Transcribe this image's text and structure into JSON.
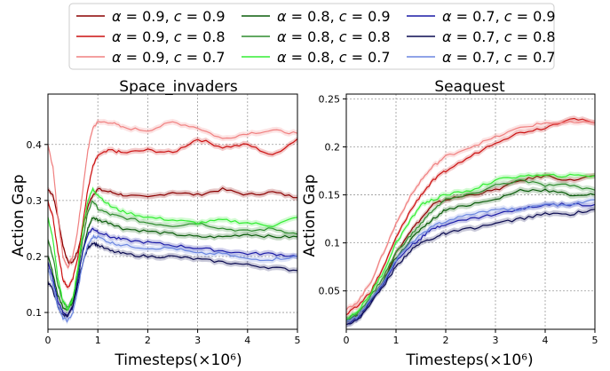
{
  "legend": {
    "entries": [
      {
        "alpha": "0.9",
        "c": "0.9",
        "color": "#8b0000"
      },
      {
        "alpha": "0.8",
        "c": "0.9",
        "color": "#0b5d0b"
      },
      {
        "alpha": "0.7",
        "c": "0.9",
        "color": "#1a1aa6"
      },
      {
        "alpha": "0.9",
        "c": "0.8",
        "color": "#cc1111"
      },
      {
        "alpha": "0.8",
        "c": "0.8",
        "color": "#2e8b2e"
      },
      {
        "alpha": "0.7",
        "c": "0.8",
        "color": "#0a0a50"
      },
      {
        "alpha": "0.9",
        "c": "0.7",
        "color": "#f08080"
      },
      {
        "alpha": "0.8",
        "c": "0.7",
        "color": "#33ee33"
      },
      {
        "alpha": "0.7",
        "c": "0.7",
        "color": "#6b86e0"
      }
    ]
  },
  "chart_data": [
    {
      "type": "line",
      "title": "Space_invaders",
      "xlabel": "Timesteps(×10⁶)",
      "ylabel": "Action Gap",
      "xlim": [
        0,
        5
      ],
      "ylim": [
        0.07,
        0.49
      ],
      "xticks": [
        0,
        1,
        2,
        3,
        4,
        5
      ],
      "yticks": [
        0.1,
        0.2,
        0.3,
        0.4
      ],
      "grid": true,
      "x": [
        0,
        0.1,
        0.2,
        0.3,
        0.4,
        0.5,
        0.6,
        0.7,
        0.8,
        0.9,
        1.0,
        1.25,
        1.5,
        2.0,
        2.5,
        3.0,
        3.5,
        4.0,
        4.5,
        5.0
      ],
      "series": [
        {
          "legend_index": 0,
          "values": [
            0.32,
            0.31,
            0.27,
            0.22,
            0.19,
            0.19,
            0.21,
            0.25,
            0.29,
            0.31,
            0.32,
            0.315,
            0.31,
            0.305,
            0.315,
            0.31,
            0.32,
            0.31,
            0.315,
            0.305
          ]
        },
        {
          "legend_index": 3,
          "values": [
            0.3,
            0.27,
            0.21,
            0.16,
            0.145,
            0.16,
            0.2,
            0.26,
            0.32,
            0.36,
            0.38,
            0.39,
            0.385,
            0.39,
            0.385,
            0.41,
            0.395,
            0.4,
            0.38,
            0.41
          ]
        },
        {
          "legend_index": 6,
          "values": [
            0.4,
            0.36,
            0.27,
            0.2,
            0.18,
            0.2,
            0.25,
            0.32,
            0.39,
            0.43,
            0.44,
            0.44,
            0.43,
            0.425,
            0.44,
            0.43,
            0.41,
            0.42,
            0.425,
            0.42
          ]
        },
        {
          "legend_index": 1,
          "values": [
            0.2,
            0.17,
            0.13,
            0.11,
            0.105,
            0.12,
            0.16,
            0.21,
            0.25,
            0.27,
            0.265,
            0.26,
            0.25,
            0.245,
            0.24,
            0.235,
            0.235,
            0.24,
            0.235,
            0.235
          ]
        },
        {
          "legend_index": 4,
          "values": [
            0.23,
            0.2,
            0.15,
            0.12,
            0.11,
            0.125,
            0.17,
            0.23,
            0.28,
            0.3,
            0.285,
            0.275,
            0.27,
            0.26,
            0.255,
            0.26,
            0.25,
            0.245,
            0.25,
            0.24
          ]
        },
        {
          "legend_index": 7,
          "values": [
            0.27,
            0.23,
            0.16,
            0.12,
            0.105,
            0.125,
            0.18,
            0.25,
            0.3,
            0.32,
            0.31,
            0.29,
            0.28,
            0.27,
            0.265,
            0.26,
            0.265,
            0.26,
            0.255,
            0.27
          ]
        },
        {
          "legend_index": 2,
          "values": [
            0.19,
            0.16,
            0.12,
            0.1,
            0.095,
            0.11,
            0.16,
            0.21,
            0.24,
            0.25,
            0.245,
            0.235,
            0.23,
            0.225,
            0.22,
            0.215,
            0.21,
            0.205,
            0.205,
            0.2
          ]
        },
        {
          "legend_index": 5,
          "values": [
            0.155,
            0.14,
            0.11,
            0.095,
            0.095,
            0.11,
            0.15,
            0.19,
            0.215,
            0.225,
            0.22,
            0.21,
            0.205,
            0.2,
            0.2,
            0.195,
            0.19,
            0.185,
            0.18,
            0.175
          ]
        },
        {
          "legend_index": 8,
          "values": [
            0.18,
            0.15,
            0.11,
            0.09,
            0.085,
            0.1,
            0.14,
            0.19,
            0.22,
            0.235,
            0.235,
            0.225,
            0.22,
            0.215,
            0.215,
            0.205,
            0.205,
            0.195,
            0.195,
            0.2
          ]
        }
      ]
    },
    {
      "type": "line",
      "title": "Seaquest",
      "xlabel": "Timesteps(×10⁶)",
      "ylabel": "Action Gap",
      "xlim": [
        0,
        5
      ],
      "ylim": [
        0.01,
        0.255
      ],
      "xticks": [
        0,
        1,
        2,
        3,
        4,
        5
      ],
      "yticks": [
        0.05,
        0.1,
        0.15,
        0.2,
        0.25
      ],
      "grid": true,
      "x": [
        0,
        0.25,
        0.5,
        0.75,
        1.0,
        1.25,
        1.5,
        1.75,
        2.0,
        2.5,
        3.0,
        3.5,
        4.0,
        4.5,
        5.0
      ],
      "series": [
        {
          "legend_index": 0,
          "values": [
            0.02,
            0.025,
            0.04,
            0.06,
            0.09,
            0.11,
            0.125,
            0.14,
            0.145,
            0.15,
            0.155,
            0.165,
            0.17,
            0.165,
            0.17
          ]
        },
        {
          "legend_index": 3,
          "values": [
            0.025,
            0.035,
            0.05,
            0.075,
            0.105,
            0.13,
            0.15,
            0.165,
            0.175,
            0.19,
            0.205,
            0.215,
            0.22,
            0.23,
            0.225
          ]
        },
        {
          "legend_index": 6,
          "values": [
            0.03,
            0.04,
            0.06,
            0.09,
            0.12,
            0.145,
            0.165,
            0.18,
            0.19,
            0.2,
            0.21,
            0.22,
            0.225,
            0.225,
            0.225
          ]
        },
        {
          "legend_index": 1,
          "values": [
            0.02,
            0.025,
            0.04,
            0.06,
            0.085,
            0.1,
            0.115,
            0.125,
            0.135,
            0.14,
            0.145,
            0.155,
            0.155,
            0.15,
            0.15
          ]
        },
        {
          "legend_index": 4,
          "values": [
            0.02,
            0.028,
            0.045,
            0.065,
            0.09,
            0.105,
            0.12,
            0.135,
            0.145,
            0.15,
            0.16,
            0.165,
            0.16,
            0.16,
            0.155
          ]
        },
        {
          "legend_index": 7,
          "values": [
            0.02,
            0.03,
            0.048,
            0.07,
            0.1,
            0.12,
            0.14,
            0.145,
            0.15,
            0.155,
            0.165,
            0.17,
            0.17,
            0.17,
            0.17
          ]
        },
        {
          "legend_index": 2,
          "values": [
            0.015,
            0.022,
            0.04,
            0.058,
            0.08,
            0.095,
            0.105,
            0.115,
            0.12,
            0.125,
            0.13,
            0.135,
            0.14,
            0.14,
            0.14
          ]
        },
        {
          "legend_index": 5,
          "values": [
            0.015,
            0.02,
            0.038,
            0.055,
            0.075,
            0.09,
            0.1,
            0.105,
            0.11,
            0.115,
            0.12,
            0.125,
            0.13,
            0.13,
            0.135
          ]
        },
        {
          "legend_index": 8,
          "values": [
            0.018,
            0.024,
            0.042,
            0.06,
            0.082,
            0.098,
            0.108,
            0.118,
            0.122,
            0.13,
            0.135,
            0.135,
            0.14,
            0.14,
            0.145
          ]
        }
      ]
    }
  ]
}
